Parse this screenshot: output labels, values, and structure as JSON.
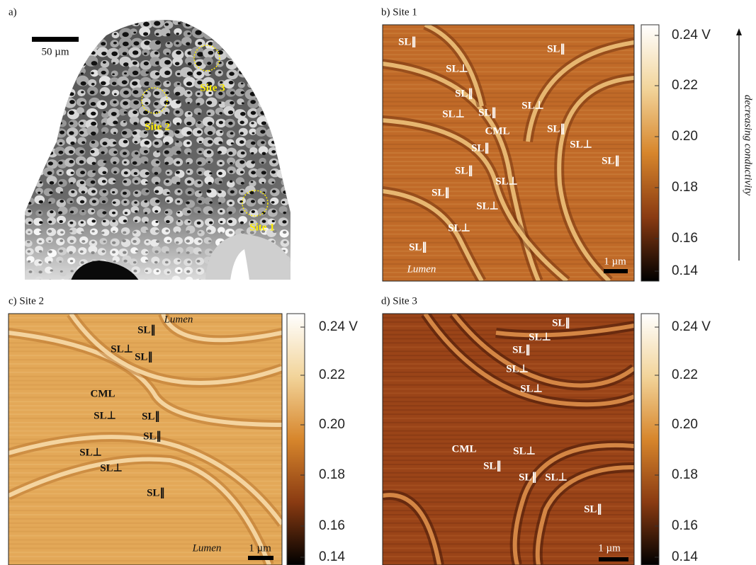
{
  "panels": [
    {
      "label": "a)",
      "scale_bar": "50 µm",
      "sites": [
        "Site 3",
        "Site 2",
        "Site 1"
      ]
    },
    {
      "label": "b) Site 1",
      "scale_bar": "1 µm",
      "annotations": [
        "SL∥",
        "SL⊥",
        "SL∥",
        "SL∥",
        "SL⊥",
        "SL⊥",
        "SL∥",
        "CML",
        "SL∥",
        "SL∥",
        "SL⊥",
        "SL∥",
        "SL∥",
        "SL⊥",
        "SL∥",
        "SL⊥",
        "SL⊥",
        "SL∥",
        "Lumen"
      ],
      "colorbar": [
        "0.24 V",
        "0.22",
        "0.20",
        "0.18",
        "0.16",
        "0.14"
      ]
    },
    {
      "label": "c) Site 2",
      "scale_bar": "1 µm",
      "annotations": [
        "Lumen",
        "SL∥",
        "SL⊥",
        "SL∥",
        "CML",
        "SL⊥",
        "SL∥",
        "SL∥",
        "SL⊥",
        "SL⊥",
        "SL∥",
        "Lumen"
      ],
      "colorbar": [
        "0.24 V",
        "0.22",
        "0.20",
        "0.18",
        "0.16",
        "0.14"
      ]
    },
    {
      "label": "d) Site 3",
      "scale_bar": "1 µm",
      "annotations": [
        "SL∥",
        "SL⊥",
        "SL∥",
        "SL⊥",
        "SL⊥",
        "CML",
        "SL⊥",
        "SL∥",
        "SL∥",
        "SL⊥",
        "SL∥"
      ],
      "colorbar": [
        "0.24 V",
        "0.22",
        "0.20",
        "0.18",
        "0.16",
        "0.14"
      ]
    }
  ],
  "colorbar_caption": "decreasing conductivity"
}
